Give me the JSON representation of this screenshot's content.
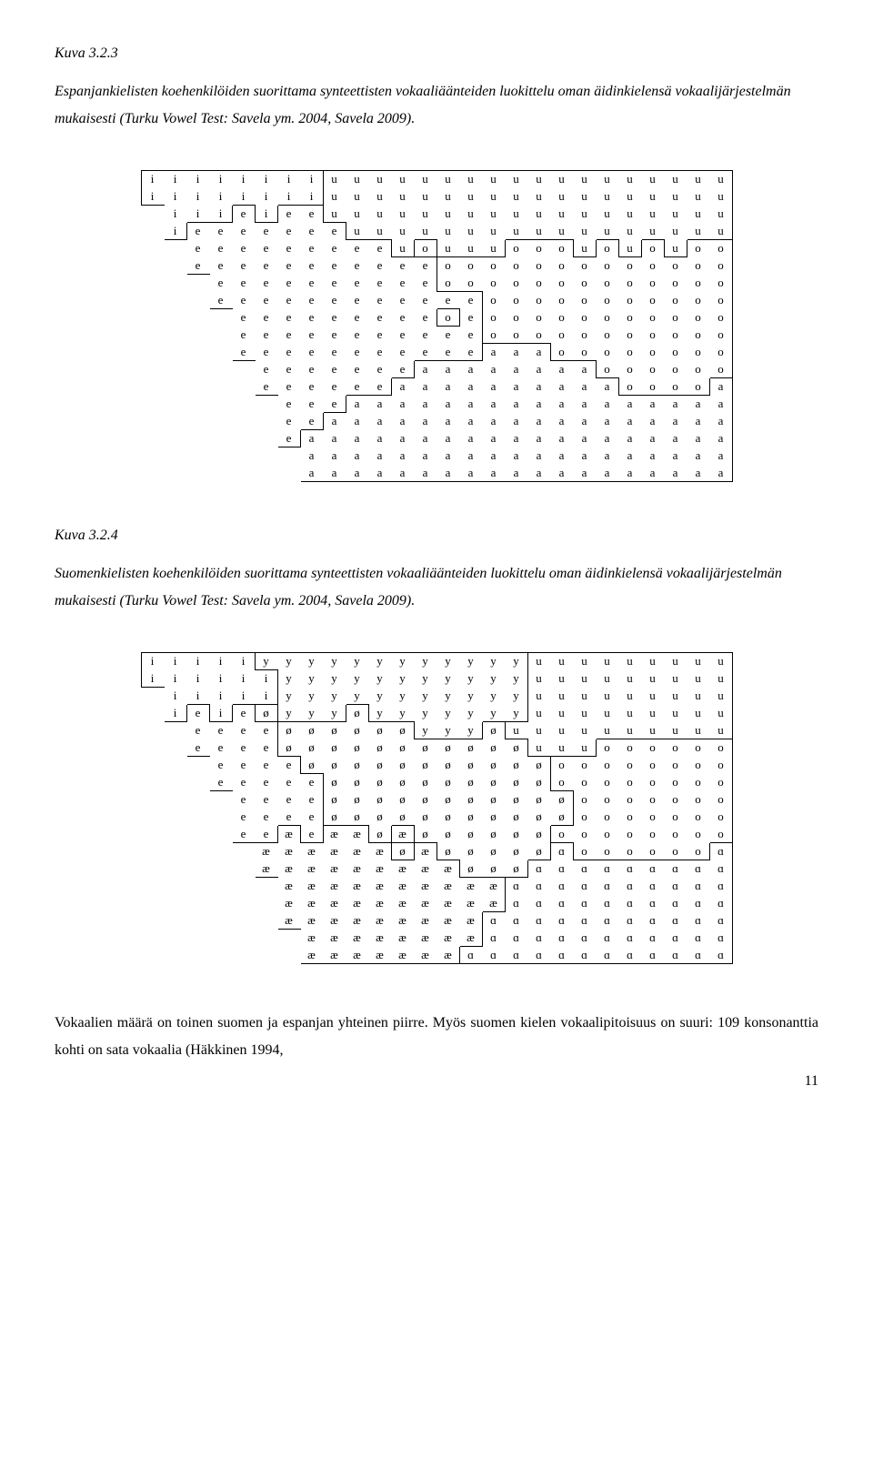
{
  "fig1": {
    "label": "Kuva 3.2.3",
    "caption": "Espanjankielisten koehenkilöiden suorittama synteettisten vokaaliäänteiden luokittelu oman äidinkielensä vokaalijärjestelmän mukaisesti (Turku Vowel Test: Savela ym. 2004, Savela 2009).",
    "cols": 26,
    "rows": [
      "iiiiiiiiuuuuuuuuuuuuuuuuuu",
      "iiiiiiiiuuuuuuuuuuuuuuuuuu",
      " iiieieeuuuuuuuuuuuuuuuuuu",
      " ieeeeeeeuuuuuuuuuuuuuuuuu",
      "  eeeeeeeeeuouuuooouououoo",
      "  eeeeeeeeeeeooooooooooooo",
      "   eeeeeeeeeeooooooooooooo",
      "   eeeeeeeeeeeeooooooooooo",
      "    eeeeeeeeeoeooooooooooo",
      "    eeeeeeeeeeeooooooooooo",
      "    eeeeeeeeeeeaaaoooooooo",
      "     eeeeeeeaaaaaaaaoooooo",
      "     eeeeeeaaaaaaaaaaooooa",
      "      eeeaaaaaaaaaaaaaaaaa",
      "      eeaaaaaaaaaaaaaaaaaa",
      "      eaaaaaaaaaaaaaaaaaaa",
      "       aaaaaaaaaaaaaaaaaaa",
      "       aaaaaaaaaaaaaaaaaaa"
    ],
    "groups": [
      "i",
      "e",
      "u",
      "o",
      "a"
    ]
  },
  "fig2": {
    "label": "Kuva 3.2.4",
    "caption": "Suomenkielisten koehenkilöiden suorittama synteettisten vokaaliäänteiden luokittelu oman äidinkielensä vokaalijärjestelmän mukaisesti (Turku Vowel Test: Savela ym. 2004, Savela 2009).",
    "cols": 26,
    "rows": [
      "iiiiiyyyyyyyyyyyyuuuuuuuuu",
      "iiiiiiyyyyyyyyyyyuuuuuuuuu",
      " iiiiiyyyyyyyyyyyuuuuuuuuu",
      " ieieøyyyøyyyyyyyuuuuuuuuu",
      "  eeeeøøøøøøyyyøuuuuuuuuuu",
      "  eeeeøøøøøøøøøøøuuuoooooo",
      "   eeeeøøøøøøøøøøøoooooooo",
      "   eeeeeøøøøøøøøøøoooooooo",
      "    eeeeøøøøøøøøøøøooooooo",
      "    eeeeøøøøøøøøøøøooooooo",
      "    eeæeææøæøøøøøøoooooooo",
      "     ææææææøæøøøøøɑooooooɑ",
      "     æææææææææøøøɑɑɑɑɑɑɑɑɑ",
      "      ææææææææææɑɑɑɑɑɑɑɑɑɑ",
      "      ææææææææææɑɑɑɑɑɑɑɑɑɑ",
      "      æææææææææɑɑɑɑɑɑɑɑɑɑɑ",
      "       ææææææææɑɑɑɑɑɑɑɑɑɑɑ",
      "       æææææææɑɑɑɑɑɑɑɑɑɑɑɑ"
    ],
    "groups": [
      "i",
      "e",
      "y",
      "ø",
      "u",
      "o",
      "æ",
      "ɑ"
    ]
  },
  "bodytext": "Vokaalien määrä on toinen suomen ja espanjan yhteinen piirre. Myös suomen kielen vokaalipitoisuus on suuri: 109 konsonanttia kohti on sata vokaalia (Häkkinen 1994,",
  "pagenum": "11",
  "colors": {
    "text": "#000000",
    "background": "#ffffff",
    "border": "#000000"
  }
}
